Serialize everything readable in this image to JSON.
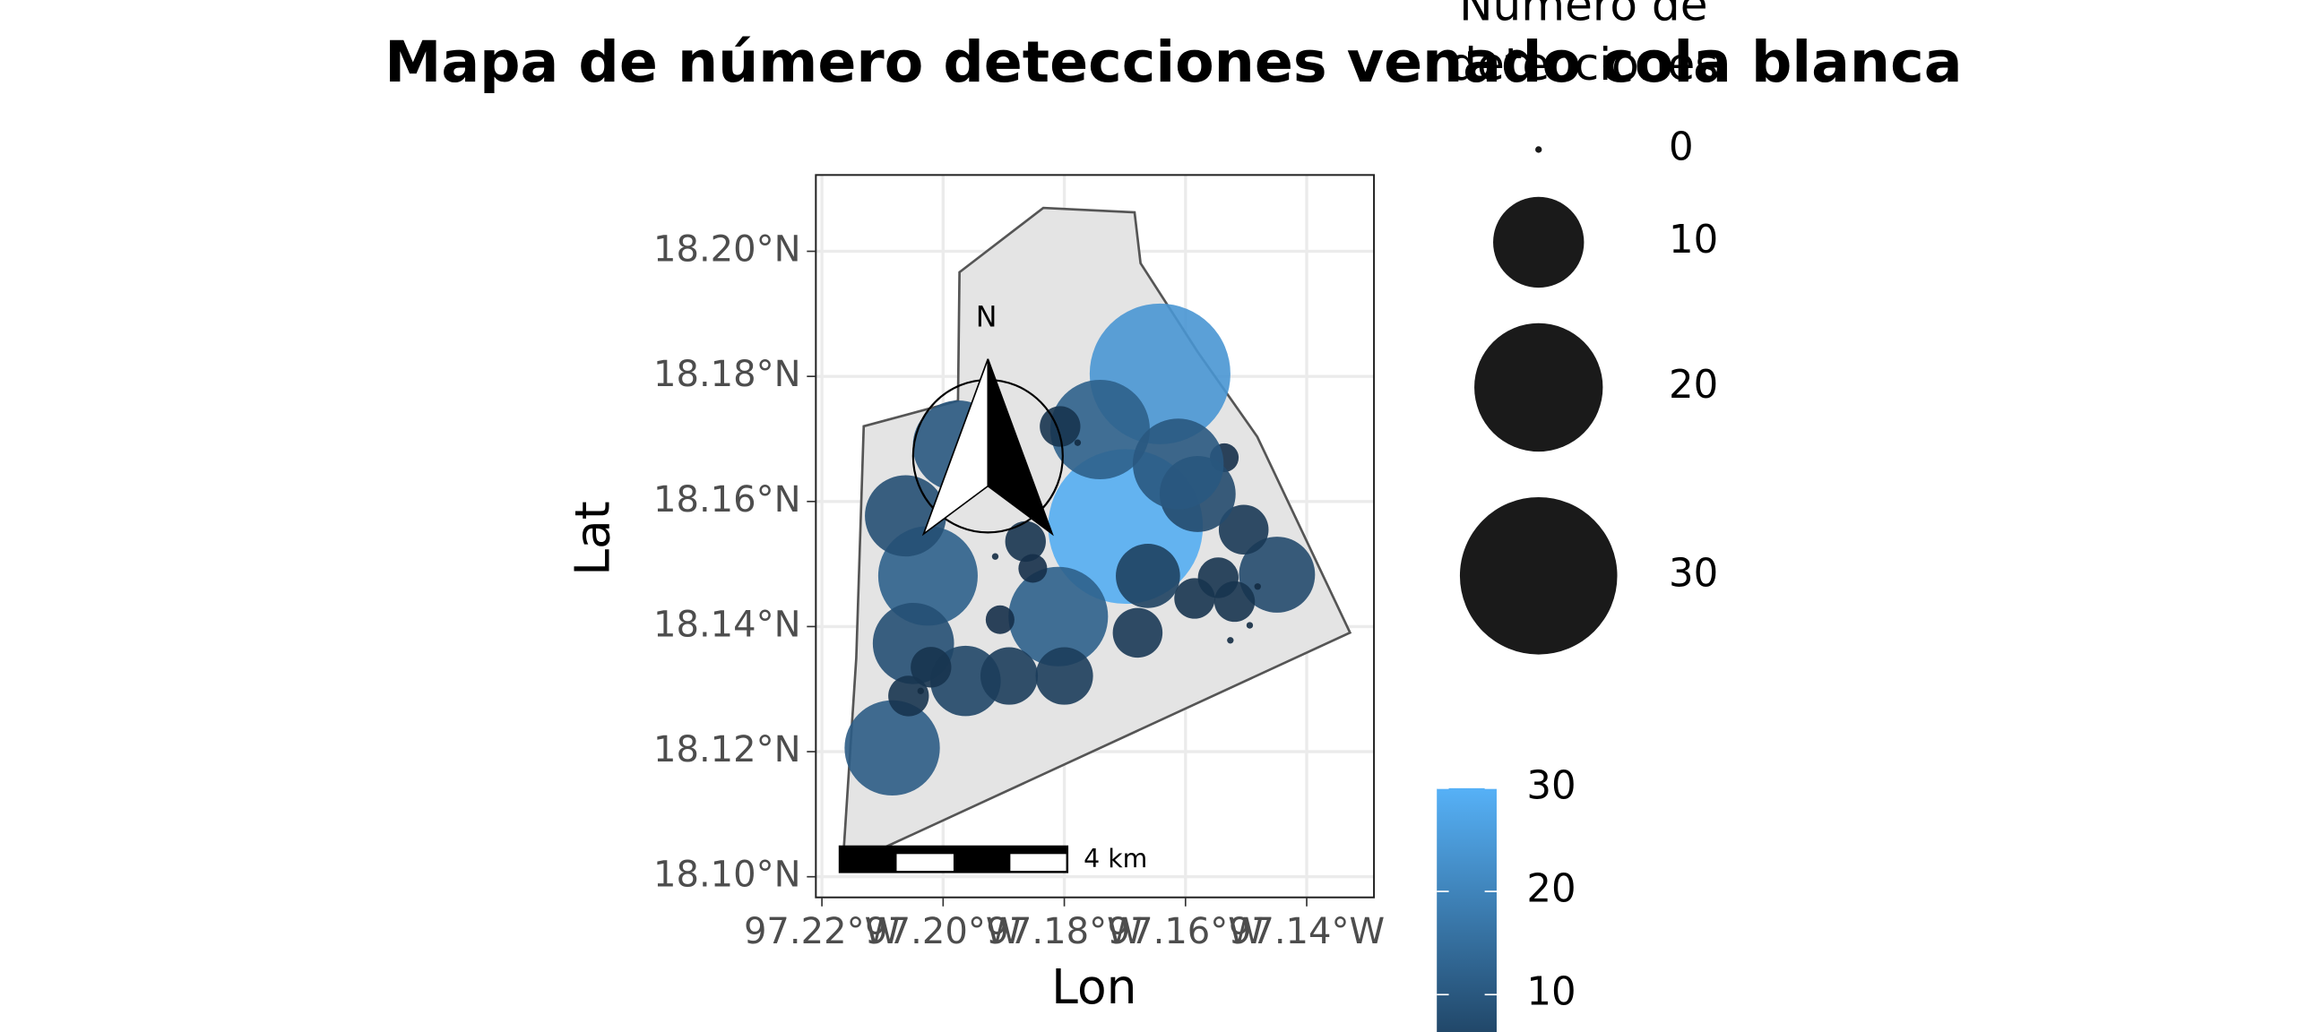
{
  "chart_data": {
    "type": "bubble",
    "title": "Mapa de número detecciones venado cola blanca",
    "x_label": "Lon",
    "y_label": "Lat",
    "legend_title": "Número de detecciones",
    "north_label": "N",
    "scale_label": "4 km",
    "x": [
      -97.1642,
      -97.1699,
      -97.2025,
      -97.2084,
      -97.181,
      -97.2062,
      -97.2049,
      -97.1741,
      -97.1975,
      -97.1963,
      -97.1891,
      -97.18,
      -97.1679,
      -97.1662,
      -97.1449,
      -97.1504,
      -97.1585,
      -97.1546,
      -97.1519,
      -97.1536,
      -97.2057,
      -97.202,
      -97.1906,
      -97.1864,
      -97.1852,
      -97.1807,
      -97.158,
      -97.1612,
      -97.1914,
      -97.1526,
      -97.1481,
      -97.1494,
      -97.2037,
      -97.1778
    ],
    "y": [
      18.1804,
      18.156,
      18.1481,
      18.1206,
      18.1416,
      18.1577,
      18.1373,
      18.1715,
      18.1689,
      18.1313,
      18.1321,
      18.1321,
      18.139,
      18.1481,
      18.1483,
      18.1555,
      18.1445,
      18.1478,
      18.144,
      18.167,
      18.1289,
      18.1335,
      18.1411,
      18.1536,
      18.1493,
      18.172,
      18.1612,
      18.166,
      18.1512,
      18.1378,
      18.1464,
      18.1402,
      18.1297,
      18.1694
    ],
    "sizes": [
      24,
      29,
      12,
      11,
      12,
      8,
      8,
      12,
      10,
      6,
      4,
      4,
      3,
      5,
      7,
      3,
      2,
      2,
      2,
      1,
      2,
      2,
      1,
      2,
      1,
      2,
      7,
      10,
      0,
      0,
      0,
      0,
      0,
      0
    ],
    "color_low": "#132B43",
    "color_high": "#56B1F7",
    "color_lim": [
      0,
      30
    ],
    "size_legend": [
      0,
      10,
      20,
      30
    ],
    "colorbar_ticks": [
      10,
      20,
      30
    ],
    "xlim": [
      -97.221,
      -97.1289
    ],
    "ylim": [
      18.0967,
      18.2122
    ],
    "xticks": [
      {
        "value": -97.22,
        "label": "97.22°W"
      },
      {
        "value": -97.2,
        "label": "97.20°W"
      },
      {
        "value": -97.18,
        "label": "97.18°W"
      },
      {
        "value": -97.16,
        "label": "97.16°W"
      },
      {
        "value": -97.14,
        "label": "97.14°W"
      }
    ],
    "yticks": [
      {
        "value": 18.1,
        "label": "18.10°N"
      },
      {
        "value": 18.12,
        "label": "18.12°N"
      },
      {
        "value": 18.14,
        "label": "18.14°N"
      },
      {
        "value": 18.16,
        "label": "18.16°N"
      },
      {
        "value": 18.18,
        "label": "18.18°N"
      },
      {
        "value": 18.2,
        "label": "18.20°N"
      }
    ],
    "grid": true
  }
}
